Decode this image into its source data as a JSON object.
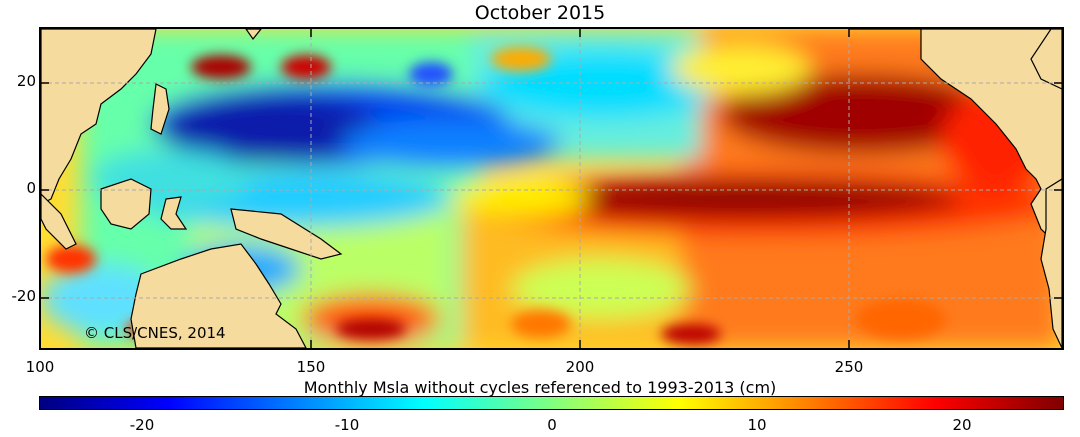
{
  "title": "October 2015",
  "copyright": "©  CLS/CNES, 2014",
  "map": {
    "lon_range": [
      100,
      290
    ],
    "lat_range": [
      -30,
      30
    ],
    "x_ticks": [
      "100",
      "150",
      "200",
      "250"
    ],
    "y_ticks": [
      "20",
      "0",
      "-20"
    ],
    "land_color": "#f5dc9e",
    "grid": true
  },
  "colorbar": {
    "title": "Monthly Msla without cycles  referenced to 1993-2013 (cm)",
    "range": [
      -25,
      25
    ],
    "ticks": [
      "-20",
      "-10",
      "0",
      "10",
      "20"
    ],
    "colormap": [
      "#00007f",
      "#0000ff",
      "#0080ff",
      "#00ffff",
      "#80ff80",
      "#ffff00",
      "#ff8000",
      "#ff0000",
      "#7f0000"
    ]
  }
}
